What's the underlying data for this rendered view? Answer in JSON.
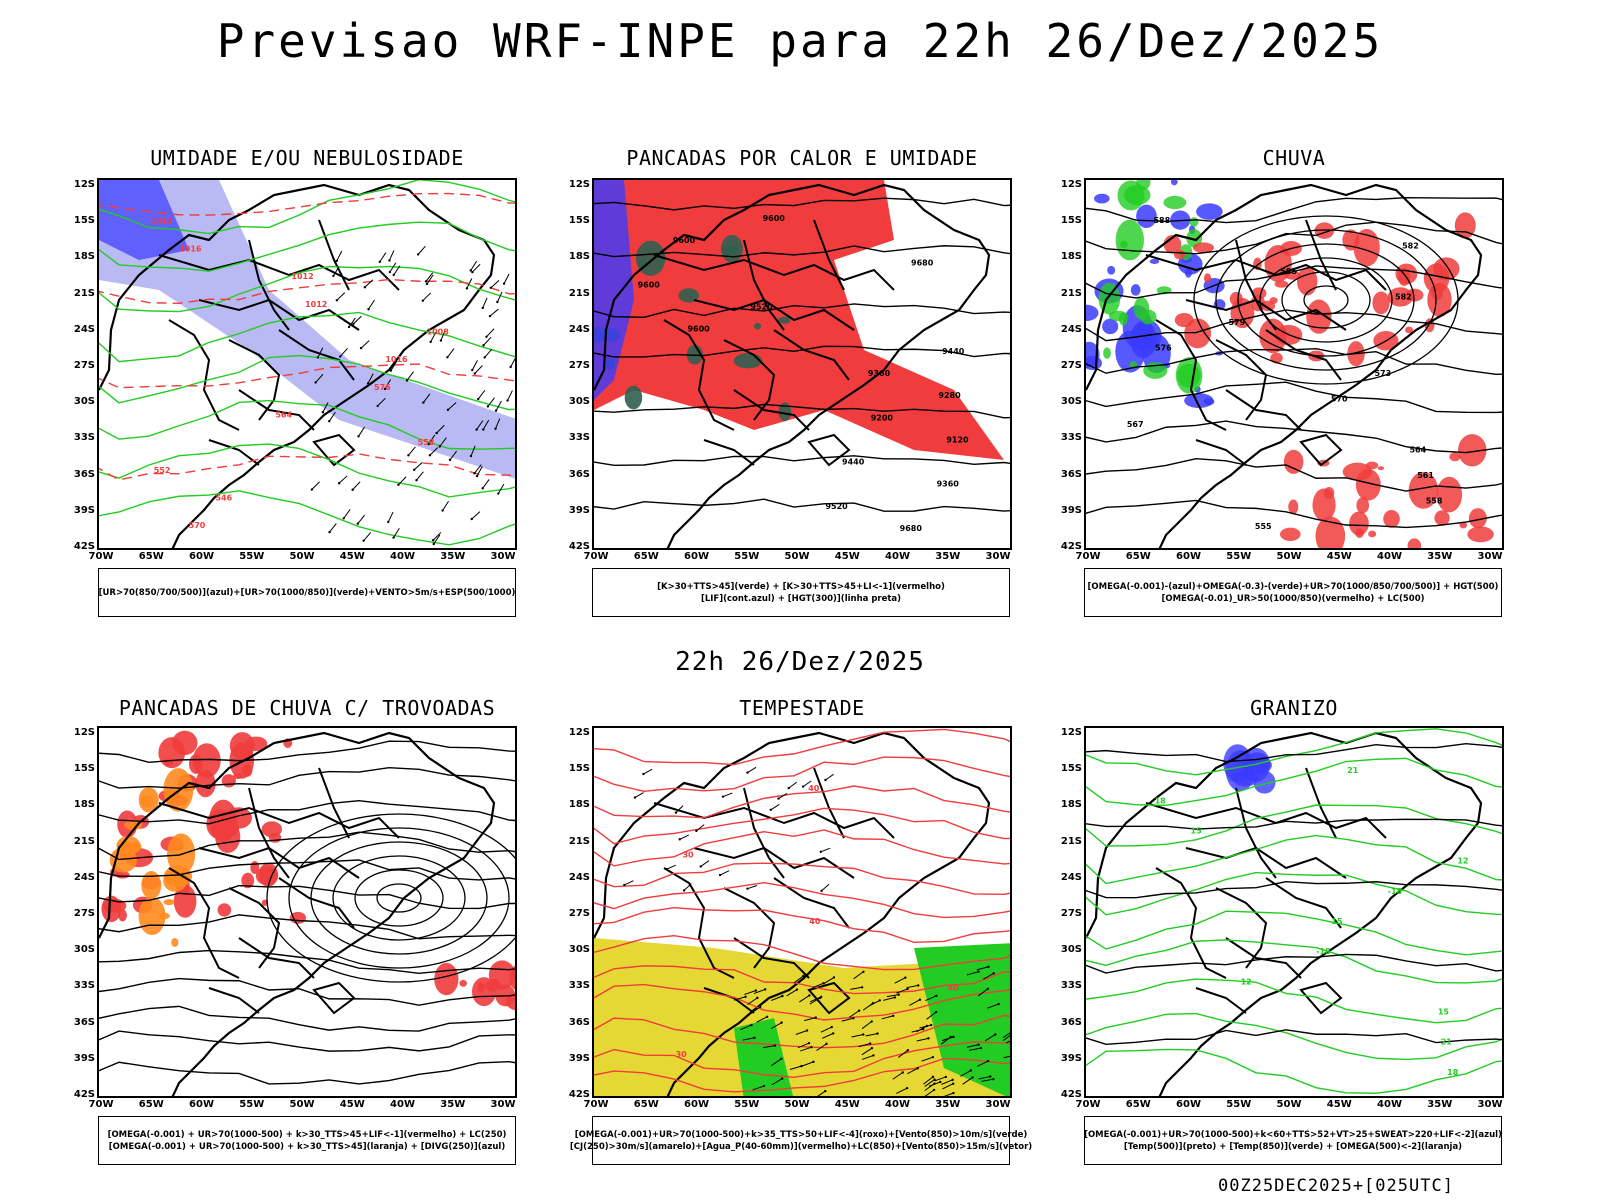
{
  "title": "Previsao WRF-INPE  para 22h 26/Dez/2025",
  "subtitle": "22h 26/Dez/2025",
  "footer": "00Z25DEC2025+[025UTC]",
  "axes": {
    "lat": [
      "12S",
      "15S",
      "18S",
      "21S",
      "24S",
      "27S",
      "30S",
      "33S",
      "36S",
      "39S",
      "42S"
    ],
    "lon": [
      "70W",
      "65W",
      "60W",
      "55W",
      "50W",
      "45W",
      "40W",
      "35W",
      "30W"
    ]
  },
  "colors": {
    "red": "#f03c3c",
    "green": "#22cc22",
    "blue": "#3b3bff",
    "lightblue": "#a8a8f0",
    "yellow": "#e6d834",
    "darkgreen": "#2f5f50"
  },
  "chart_data": [
    {
      "id": "p1",
      "type": "map",
      "title": "UMIDADE E/OU NEBULOSIDADE",
      "legend": [
        "[UR>70(850/700/500)](azul)+[UR>70(1000/850)](verde)+VENTO>5m/s+ESP(500/1000)"
      ],
      "contour_labels": [
        "1012",
        "1016",
        "1012",
        "1012",
        "1008",
        "1016",
        "576",
        "564",
        "558",
        "552",
        "546",
        "570"
      ]
    },
    {
      "id": "p2",
      "type": "map",
      "title": "PANCADAS POR CALOR E UMIDADE",
      "legend": [
        "[K>30+TTS>45](verde) + [K>30+TTS>45+LI<-1](vermelho)",
        "[LIF](cont.azul) + [HGT(300)](linha preta)"
      ],
      "contour_labels": [
        "9600",
        "9600",
        "9680",
        "9600",
        "9520",
        "9600",
        "9440",
        "9360",
        "9280",
        "9200",
        "9120",
        "9440",
        "9360",
        "9520",
        "9680"
      ]
    },
    {
      "id": "p3",
      "type": "map",
      "title": "CHUVA",
      "legend": [
        "[OMEGA(-0.001)-(azul)+OMEGA(-0.3)-(verde)+UR>70(1000/850/700/500)] + HGT(500)",
        "[OMEGA(-0.01)_UR>50(1000/850)(vermelho) + LC(500)"
      ],
      "contour_labels": [
        "588",
        "582",
        "585",
        "582",
        "579",
        "576",
        "573",
        "570",
        "567",
        "564",
        "561",
        "558",
        "555"
      ]
    },
    {
      "id": "p4",
      "type": "map",
      "title": "PANCADAS DE CHUVA C/ TROVOADAS",
      "legend": [
        "[OMEGA(-0.001) + UR>70(1000-500) + k>30_TTS>45+LIF<-1](vermelho) + LC(250)",
        "[OMEGA(-0.001) + UR>70(1000-500) + k>30_TTS>45](laranja) + [DIVG(250)](azul)"
      ],
      "contour_labels": []
    },
    {
      "id": "p5",
      "type": "map",
      "title": "TEMPESTADE",
      "legend": [
        "[OMEGA(-0.001)+UR>70(1000-500)+k>35_TTS>50+LIF<-4](roxo)+[Vento(850)>10m/s](verde)",
        "[CJ(250)>30m/s](amarelo)+[Agua_P(40-60mm)](vermelho)+LC(850)+[Vento(850)>15m/s](vetor)"
      ],
      "contour_labels": [
        "40",
        "30",
        "40",
        "40",
        "30"
      ]
    },
    {
      "id": "p6",
      "type": "map",
      "title": "GRANIZO",
      "legend": [
        "[OMEGA(-0.001)+UR>70(1000-500)+k<60+TTS>52+VT>25+SWEAT>220+LIF<-2](azul)",
        "[Temp(500)](preto) + [Temp(850)](verde) + [OMEGA(500)<-2](laranja)"
      ],
      "contour_labels": [
        "21",
        "18",
        "15",
        "12",
        "-18",
        "-15",
        "-18",
        "12",
        "15",
        "21",
        "18"
      ]
    }
  ]
}
